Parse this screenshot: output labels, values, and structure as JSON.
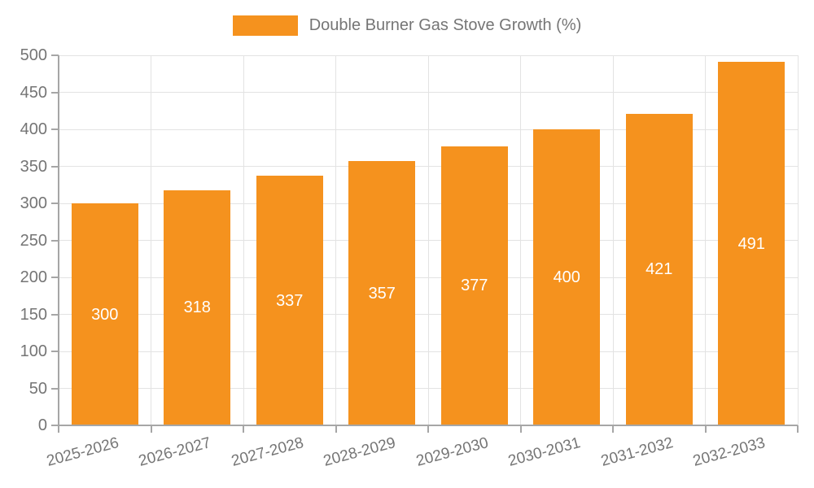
{
  "chart_data": {
    "type": "bar",
    "title": "Double Burner Gas Stove Growth (%)",
    "legend": {
      "label": "Double Burner Gas Stove Growth (%)",
      "position": "top-center"
    },
    "categories": [
      "2025-2026",
      "2026-2027",
      "2027-2028",
      "2028-2029",
      "2029-2030",
      "2030-2031",
      "2031-2032",
      "2032-2033"
    ],
    "values": [
      300,
      318,
      337,
      357,
      377,
      400,
      421,
      491
    ],
    "bar_labels": [
      "300",
      "318",
      "337",
      "357",
      "377",
      "400",
      "421",
      "491"
    ],
    "xlabel": "",
    "ylabel": "",
    "ylim": [
      0,
      500
    ],
    "ytick_step": 50,
    "ytick_labels": [
      "0",
      "50",
      "100",
      "150",
      "200",
      "250",
      "300",
      "350",
      "400",
      "450",
      "500"
    ],
    "grid": "on",
    "x_label_rotation_deg": -15,
    "colors": {
      "bar": "#F5921E",
      "bar_value_text": "#FFFFFF",
      "axis_text": "#757575",
      "axis_line": "#A6A6A6",
      "gridline": "#E3E3E3",
      "background": "#FFFFFF"
    }
  }
}
